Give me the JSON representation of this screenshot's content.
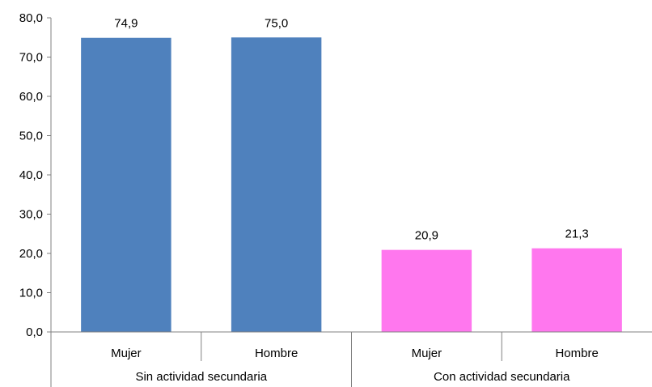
{
  "chart_data": {
    "type": "bar",
    "groups": [
      {
        "label": "Sin actividad secundaria",
        "bars": [
          {
            "category": "Mujer",
            "value": 74.9,
            "label": "74,9"
          },
          {
            "category": "Hombre",
            "value": 75.0,
            "label": "75,0"
          }
        ],
        "color": "#4f81bd"
      },
      {
        "label": "Con actividad secundaria",
        "bars": [
          {
            "category": "Mujer",
            "value": 20.9,
            "label": "20,9"
          },
          {
            "category": "Hombre",
            "value": 21.3,
            "label": "21,3"
          }
        ],
        "color": "#ff77ee"
      }
    ],
    "y_ticks": [
      "0,0",
      "10,0",
      "20,0",
      "30,0",
      "40,0",
      "50,0",
      "60,0",
      "70,0",
      "80,0"
    ],
    "ylim": [
      0,
      80
    ],
    "title": "",
    "xlabel": "",
    "ylabel": "",
    "grid": false,
    "legend": "none"
  }
}
